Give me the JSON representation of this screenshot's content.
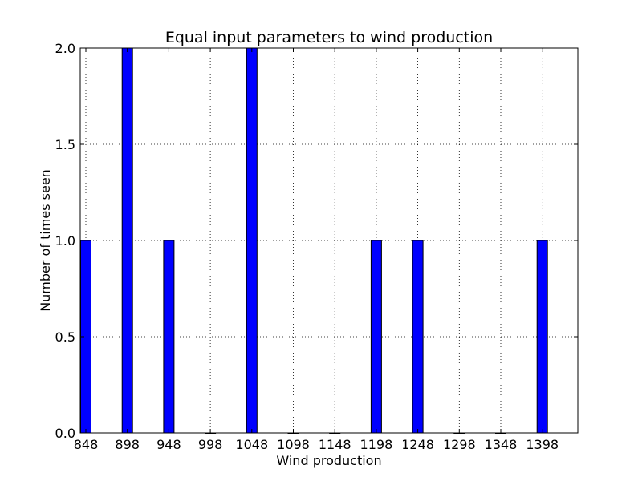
{
  "chart_data": {
    "type": "bar",
    "title": "Equal input parameters to wind production",
    "xlabel": "Wind production",
    "ylabel": "Number of times seen",
    "categories": [
      "848",
      "898",
      "948",
      "998",
      "1048",
      "1098",
      "1148",
      "1198",
      "1248",
      "1298",
      "1348",
      "1398"
    ],
    "values": [
      1,
      2,
      1,
      0,
      2,
      0,
      0,
      1,
      1,
      0,
      0,
      1
    ],
    "ylim": [
      0,
      2.0
    ],
    "yticks": [
      "0.0",
      "0.5",
      "1.0",
      "1.5",
      "2.0"
    ],
    "grid": true,
    "bar_color": "#0000ff",
    "grid_color": "#000000"
  }
}
